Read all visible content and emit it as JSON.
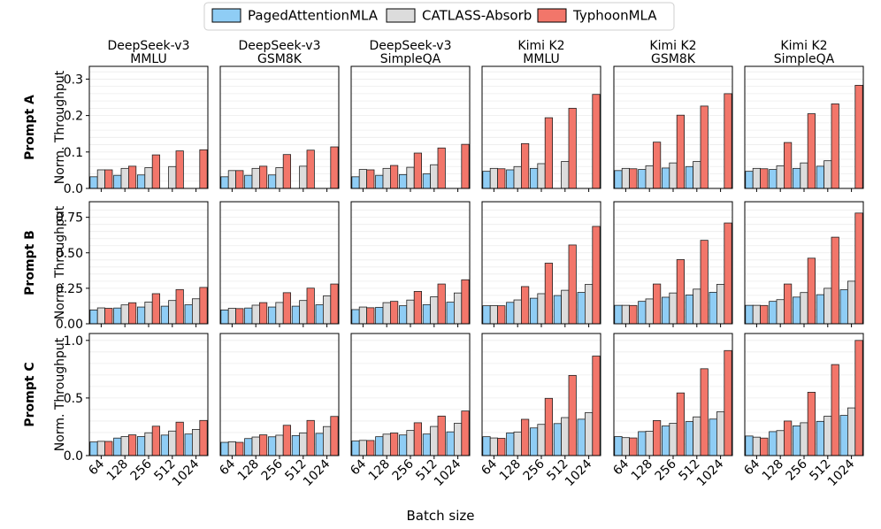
{
  "chart_data": {
    "type": "bar",
    "xlabel": "Batch size",
    "ylabel": "Norm. Throughput",
    "categories": [
      "64",
      "128",
      "256",
      "512",
      "1024"
    ],
    "legend": {
      "position": "top-center",
      "entries": [
        {
          "name": "PagedAttentionMLA",
          "color": "#8fcdf5"
        },
        {
          "name": "CATLASS-Absorb",
          "color": "#dcdcdc"
        },
        {
          "name": "TyphoonMLA",
          "color": "#f2766a"
        }
      ]
    },
    "columns": [
      {
        "model": "DeepSeek-v3",
        "dataset": "MMLU"
      },
      {
        "model": "DeepSeek-v3",
        "dataset": "GSM8K"
      },
      {
        "model": "DeepSeek-v3",
        "dataset": "SimpleQA"
      },
      {
        "model": "Kimi K2",
        "dataset": "MMLU"
      },
      {
        "model": "Kimi K2",
        "dataset": "GSM8K"
      },
      {
        "model": "Kimi K2",
        "dataset": "SimpleQA"
      }
    ],
    "rows": [
      {
        "label": "Prompt A",
        "ylim": [
          0,
          0.335
        ],
        "yticks": [
          0.0,
          0.1,
          0.2,
          0.3
        ],
        "ytick_labels": [
          "0.0",
          "0.1",
          "0.2",
          "0.3"
        ]
      },
      {
        "label": "Prompt B",
        "ylim": [
          0,
          0.86
        ],
        "yticks": [
          0.0,
          0.25,
          0.5,
          0.75
        ],
        "ytick_labels": [
          "0.00",
          "0.25",
          "0.50",
          "0.75"
        ]
      },
      {
        "label": "Prompt C",
        "ylim": [
          0,
          1.06
        ],
        "yticks": [
          0.0,
          0.5,
          1.0
        ],
        "ytick_labels": [
          "0.0",
          "0.5",
          "1.0"
        ]
      }
    ],
    "panels": [
      [
        {
          "series": [
            {
              "name": "PagedAttentionMLA",
              "values": [
                0.032,
                0.036,
                0.037,
                0,
                0
              ]
            },
            {
              "name": "CATLASS-Absorb",
              "values": [
                0.051,
                0.055,
                0.057,
                0.06,
                0
              ]
            },
            {
              "name": "TyphoonMLA",
              "values": [
                0.051,
                0.061,
                0.092,
                0.103,
                0.106
              ]
            }
          ]
        },
        {
          "series": [
            {
              "name": "PagedAttentionMLA",
              "values": [
                0.032,
                0.036,
                0.037,
                0,
                0
              ]
            },
            {
              "name": "CATLASS-Absorb",
              "values": [
                0.049,
                0.055,
                0.057,
                0.061,
                0
              ]
            },
            {
              "name": "TyphoonMLA",
              "values": [
                0.049,
                0.061,
                0.093,
                0.105,
                0.114
              ]
            }
          ]
        },
        {
          "series": [
            {
              "name": "PagedAttentionMLA",
              "values": [
                0.032,
                0.036,
                0.038,
                0.04,
                0
              ]
            },
            {
              "name": "CATLASS-Absorb",
              "values": [
                0.052,
                0.055,
                0.058,
                0.065,
                0
              ]
            },
            {
              "name": "TyphoonMLA",
              "values": [
                0.051,
                0.063,
                0.097,
                0.111,
                0.121
              ]
            }
          ]
        },
        {
          "series": [
            {
              "name": "PagedAttentionMLA",
              "values": [
                0.047,
                0.051,
                0.055,
                0,
                0
              ]
            },
            {
              "name": "CATLASS-Absorb",
              "values": [
                0.055,
                0.06,
                0.068,
                0.074,
                0
              ]
            },
            {
              "name": "TyphoonMLA",
              "values": [
                0.054,
                0.123,
                0.194,
                0.22,
                0.258
              ]
            }
          ]
        },
        {
          "series": [
            {
              "name": "PagedAttentionMLA",
              "values": [
                0.049,
                0.052,
                0.056,
                0.06,
                0
              ]
            },
            {
              "name": "CATLASS-Absorb",
              "values": [
                0.055,
                0.062,
                0.07,
                0.074,
                0
              ]
            },
            {
              "name": "TyphoonMLA",
              "values": [
                0.054,
                0.127,
                0.201,
                0.226,
                0.26
              ]
            }
          ]
        },
        {
          "series": [
            {
              "name": "PagedAttentionMLA",
              "values": [
                0.047,
                0.052,
                0.055,
                0.061,
                0
              ]
            },
            {
              "name": "CATLASS-Absorb",
              "values": [
                0.055,
                0.062,
                0.07,
                0.076,
                0
              ]
            },
            {
              "name": "TyphoonMLA",
              "values": [
                0.054,
                0.126,
                0.205,
                0.232,
                0.283
              ]
            }
          ]
        }
      ],
      [
        {
          "series": [
            {
              "name": "PagedAttentionMLA",
              "values": [
                0.097,
                0.111,
                0.118,
                0.124,
                0.134
              ]
            },
            {
              "name": "CATLASS-Absorb",
              "values": [
                0.112,
                0.133,
                0.153,
                0.164,
                0.176
              ]
            },
            {
              "name": "TyphoonMLA",
              "values": [
                0.109,
                0.148,
                0.212,
                0.241,
                0.256
              ]
            }
          ]
        },
        {
          "series": [
            {
              "name": "PagedAttentionMLA",
              "values": [
                0.097,
                0.111,
                0.118,
                0.124,
                0.134
              ]
            },
            {
              "name": "CATLASS-Absorb",
              "values": [
                0.109,
                0.131,
                0.15,
                0.164,
                0.196
              ]
            },
            {
              "name": "TyphoonMLA",
              "values": [
                0.107,
                0.149,
                0.219,
                0.251,
                0.28
              ]
            }
          ]
        },
        {
          "series": [
            {
              "name": "PagedAttentionMLA",
              "values": [
                0.1,
                0.116,
                0.127,
                0.135,
                0.152
              ]
            },
            {
              "name": "CATLASS-Absorb",
              "values": [
                0.118,
                0.149,
                0.167,
                0.19,
                0.217
              ]
            },
            {
              "name": "TyphoonMLA",
              "values": [
                0.113,
                0.158,
                0.228,
                0.28,
                0.31
              ]
            }
          ]
        },
        {
          "series": [
            {
              "name": "PagedAttentionMLA",
              "values": [
                0.127,
                0.151,
                0.18,
                0.199,
                0.221
              ]
            },
            {
              "name": "CATLASS-Absorb",
              "values": [
                0.128,
                0.168,
                0.212,
                0.236,
                0.277
              ]
            },
            {
              "name": "TyphoonMLA",
              "values": [
                0.127,
                0.262,
                0.427,
                0.555,
                0.686
              ]
            }
          ]
        },
        {
          "series": [
            {
              "name": "PagedAttentionMLA",
              "values": [
                0.13,
                0.158,
                0.187,
                0.203,
                0.222
              ]
            },
            {
              "name": "CATLASS-Absorb",
              "values": [
                0.13,
                0.175,
                0.217,
                0.244,
                0.278
              ]
            },
            {
              "name": "TyphoonMLA",
              "values": [
                0.129,
                0.28,
                0.452,
                0.588,
                0.71
              ]
            }
          ]
        },
        {
          "series": [
            {
              "name": "PagedAttentionMLA",
              "values": [
                0.13,
                0.158,
                0.188,
                0.205,
                0.24
              ]
            },
            {
              "name": "CATLASS-Absorb",
              "values": [
                0.13,
                0.17,
                0.22,
                0.25,
                0.3
              ]
            },
            {
              "name": "TyphoonMLA",
              "values": [
                0.129,
                0.28,
                0.462,
                0.61,
                0.78
              ]
            }
          ]
        }
      ],
      [
        {
          "series": [
            {
              "name": "PagedAttentionMLA",
              "values": [
                0.118,
                0.152,
                0.165,
                0.178,
                0.187
              ]
            },
            {
              "name": "CATLASS-Absorb",
              "values": [
                0.124,
                0.165,
                0.198,
                0.213,
                0.227
              ]
            },
            {
              "name": "TyphoonMLA",
              "values": [
                0.123,
                0.18,
                0.255,
                0.29,
                0.305
              ]
            }
          ]
        },
        {
          "series": [
            {
              "name": "PagedAttentionMLA",
              "values": [
                0.115,
                0.148,
                0.163,
                0.174,
                0.193
              ]
            },
            {
              "name": "CATLASS-Absorb",
              "values": [
                0.12,
                0.161,
                0.177,
                0.197,
                0.252
              ]
            },
            {
              "name": "TyphoonMLA",
              "values": [
                0.115,
                0.18,
                0.263,
                0.305,
                0.34
              ]
            }
          ]
        },
        {
          "series": [
            {
              "name": "PagedAttentionMLA",
              "values": [
                0.126,
                0.164,
                0.179,
                0.187,
                0.206
              ]
            },
            {
              "name": "CATLASS-Absorb",
              "values": [
                0.132,
                0.186,
                0.218,
                0.253,
                0.28
              ]
            },
            {
              "name": "TyphoonMLA",
              "values": [
                0.131,
                0.196,
                0.285,
                0.343,
                0.387
              ]
            }
          ]
        },
        {
          "series": [
            {
              "name": "PagedAttentionMLA",
              "values": [
                0.164,
                0.197,
                0.24,
                0.278,
                0.316
              ]
            },
            {
              "name": "CATLASS-Absorb",
              "values": [
                0.153,
                0.205,
                0.271,
                0.33,
                0.372
              ]
            },
            {
              "name": "TyphoonMLA",
              "values": [
                0.15,
                0.315,
                0.497,
                0.696,
                0.864
              ]
            }
          ]
        },
        {
          "series": [
            {
              "name": "PagedAttentionMLA",
              "values": [
                0.165,
                0.208,
                0.257,
                0.295,
                0.317
              ]
            },
            {
              "name": "CATLASS-Absorb",
              "values": [
                0.156,
                0.211,
                0.28,
                0.336,
                0.38
              ]
            },
            {
              "name": "TyphoonMLA",
              "values": [
                0.153,
                0.304,
                0.544,
                0.754,
                0.912
              ]
            }
          ]
        },
        {
          "series": [
            {
              "name": "PagedAttentionMLA",
              "values": [
                0.17,
                0.208,
                0.258,
                0.297,
                0.349
              ]
            },
            {
              "name": "CATLASS-Absorb",
              "values": [
                0.16,
                0.217,
                0.285,
                0.342,
                0.414
              ]
            },
            {
              "name": "TyphoonMLA",
              "values": [
                0.152,
                0.3,
                0.55,
                0.79,
                1.0
              ]
            }
          ]
        }
      ]
    ]
  }
}
